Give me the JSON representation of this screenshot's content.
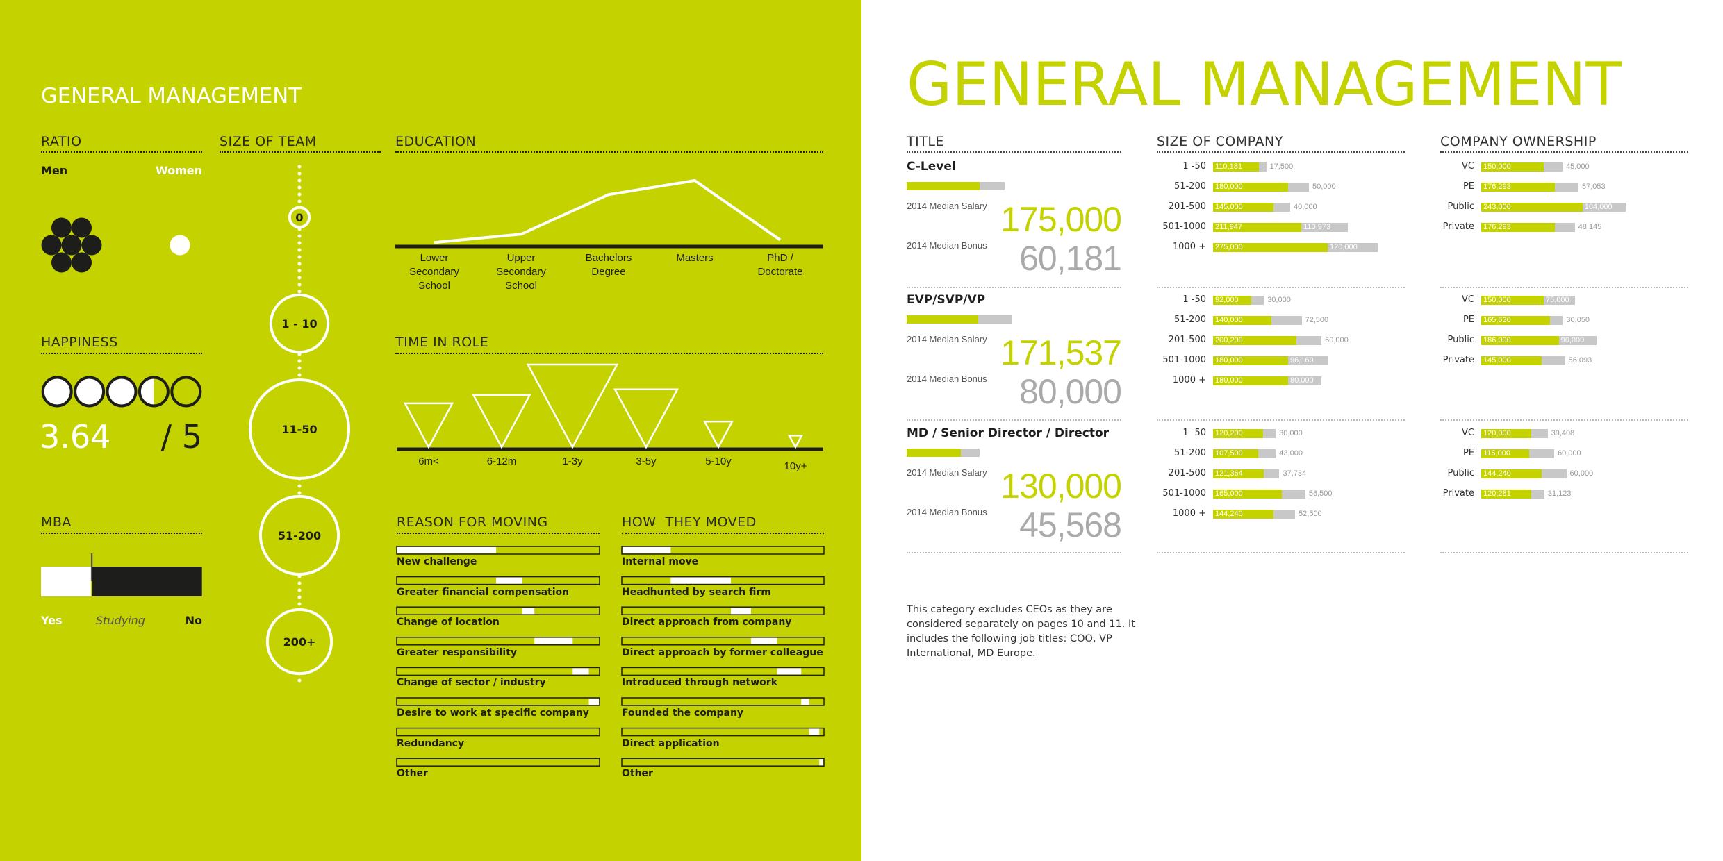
{
  "left_panel": {
    "title": "GENERAL MANAGEMENT"
  },
  "right_panel": {
    "title": "GENERAL MANAGEMENT",
    "footnote": "This category excludes CEOs as they are considered separately on pages 10 and 11. It includes the following job titles: COO, VP International, MD Europe.",
    "salary_label": "2014 Median Salary",
    "bonus_label": "2014 Median Bonus"
  },
  "colors": {
    "left_background": "#c4d300",
    "accent": "#c4d300",
    "bonus_grey": "#c8c8c8",
    "dark": "#1d1d1b",
    "white": "#ffffff"
  },
  "chart_data": {
    "ratio": {
      "type": "pictogram",
      "title": "RATIO",
      "categories": [
        "Men",
        "Women"
      ],
      "values": [
        7,
        1
      ]
    },
    "happiness": {
      "type": "rating",
      "title": "HAPPINESS",
      "value": 3.64,
      "max": 5,
      "value_label": "3.64",
      "max_label": "/ 5"
    },
    "mba": {
      "type": "stacked-bar",
      "title": "MBA",
      "categories": [
        "Yes",
        "Studying",
        "No"
      ],
      "values_percent": [
        31,
        1,
        68
      ]
    },
    "team": {
      "type": "bubble",
      "title": "SIZE OF TEAM",
      "categories": [
        "0",
        "1 - 10",
        "11-50",
        "51-200",
        "200+"
      ],
      "relative_size": [
        20,
        58,
        100,
        79,
        65
      ]
    },
    "education": {
      "type": "line",
      "title": "EDUCATION",
      "categories": [
        "Lower Secondary School",
        "Upper Secondary School",
        "Bachelors Degree",
        "Masters",
        "PhD / Doctorate"
      ],
      "category_lines": [
        [
          "Lower",
          "Secondary",
          "School"
        ],
        [
          "Upper",
          "Secondary",
          "School"
        ],
        [
          "Bachelors",
          "Degree"
        ],
        [
          "Masters"
        ],
        [
          "PhD /",
          "Doctorate"
        ]
      ],
      "relative_values": [
        3,
        16,
        78,
        100,
        7
      ]
    },
    "time_in_role": {
      "type": "triangle",
      "title": "TIME IN ROLE",
      "categories": [
        "6m<",
        "6-12m",
        "1-3y",
        "3-5y",
        "5-10y",
        "10y+"
      ],
      "relative_values": [
        53,
        63,
        100,
        70,
        31,
        14
      ]
    },
    "reason_for_moving": {
      "type": "stacked-bar",
      "title": "REASON FOR MOVING",
      "categories": [
        "New challenge",
        "Greater financial compensation",
        "Change of location",
        "Greater responsibility",
        "Change of sector / industry",
        "Desire to work at specific company",
        "Redundancy",
        "Other"
      ],
      "values_percent": [
        49,
        13,
        6,
        19,
        8,
        5,
        0,
        0
      ]
    },
    "how_they_moved": {
      "type": "stacked-bar",
      "title": "HOW  THEY MOVED",
      "categories": [
        "Internal move",
        "Headhunted by search firm",
        "Direct approach from company",
        "Direct approach by former colleague",
        "Introduced through network",
        "Founded the company",
        "Direct application",
        "Other"
      ],
      "values_percent": [
        24,
        30,
        10,
        13,
        12,
        4,
        5,
        2
      ]
    },
    "title": {
      "type": "bar",
      "title": "TITLE",
      "groups": [
        {
          "name": "C-Level",
          "salary": 175000,
          "salary_label": "175,000",
          "bonus": 60181,
          "bonus_label": "60,181"
        },
        {
          "name": "EVP/SVP/VP",
          "salary": 171537,
          "salary_label": "171,537",
          "bonus": 80000,
          "bonus_label": "80,000"
        },
        {
          "name": "MD / Senior Director / Director",
          "salary": 130000,
          "salary_label": "130,000",
          "bonus": 45568,
          "bonus_label": "45,568"
        }
      ]
    },
    "size_of_company": {
      "type": "stacked-bar",
      "title": "SIZE OF COMPANY",
      "categories": [
        "1 -50",
        "51-200",
        "201-500",
        "501-1000",
        "1000 +"
      ],
      "series": [
        {
          "salary": [
            110181,
            180000,
            145000,
            211947,
            275000
          ],
          "salary_labels": [
            "110,181",
            "180,000",
            "145,000",
            "211,947",
            "275,000"
          ],
          "bonus": [
            17500,
            50000,
            40000,
            110973,
            120000
          ],
          "bonus_labels": [
            "17,500",
            "50,000",
            "40,000",
            "110,973",
            "120,000"
          ]
        },
        {
          "salary": [
            92000,
            140000,
            200200,
            180000,
            180000
          ],
          "salary_labels": [
            "92,000",
            "140,000",
            "200,200",
            "180,000",
            "180,000"
          ],
          "bonus": [
            30000,
            72500,
            60000,
            96160,
            80000
          ],
          "bonus_labels": [
            "30,000",
            "72,500",
            "60,000",
            "96,160",
            "80,000"
          ]
        },
        {
          "salary": [
            120200,
            107500,
            121364,
            165000,
            144240
          ],
          "salary_labels": [
            "120,200",
            "107,500",
            "121,364",
            "165,000",
            "144,240"
          ],
          "bonus": [
            30000,
            43000,
            37734,
            56500,
            52500
          ],
          "bonus_labels": [
            "30,000",
            "43,000",
            "37,734",
            "56,500",
            "52,500"
          ]
        }
      ]
    },
    "company_ownership": {
      "type": "stacked-bar",
      "title": "COMPANY OWNERSHIP",
      "categories": [
        "VC",
        "PE",
        "Public",
        "Private"
      ],
      "series": [
        {
          "salary": [
            150000,
            176293,
            243000,
            176293
          ],
          "salary_labels": [
            "150,000",
            "176,293",
            "243,000",
            "176,293"
          ],
          "bonus": [
            45000,
            57053,
            104000,
            48145
          ],
          "bonus_labels": [
            "45,000",
            "57,053",
            "104,000",
            "48,145"
          ]
        },
        {
          "salary": [
            150000,
            165630,
            186000,
            145000
          ],
          "salary_labels": [
            "150,000",
            "165,630",
            "186,000",
            "145,000"
          ],
          "bonus": [
            75000,
            30050,
            90000,
            56093
          ],
          "bonus_labels": [
            "75,000",
            "30,050",
            "90,000",
            "56,093"
          ]
        },
        {
          "salary": [
            120000,
            115000,
            144240,
            120281
          ],
          "salary_labels": [
            "120,000",
            "115,000",
            "144,240",
            "120,281"
          ],
          "bonus": [
            39408,
            60000,
            60000,
            31123
          ],
          "bonus_labels": [
            "39,408",
            "60,000",
            "60,000",
            "31,123"
          ]
        }
      ]
    }
  }
}
